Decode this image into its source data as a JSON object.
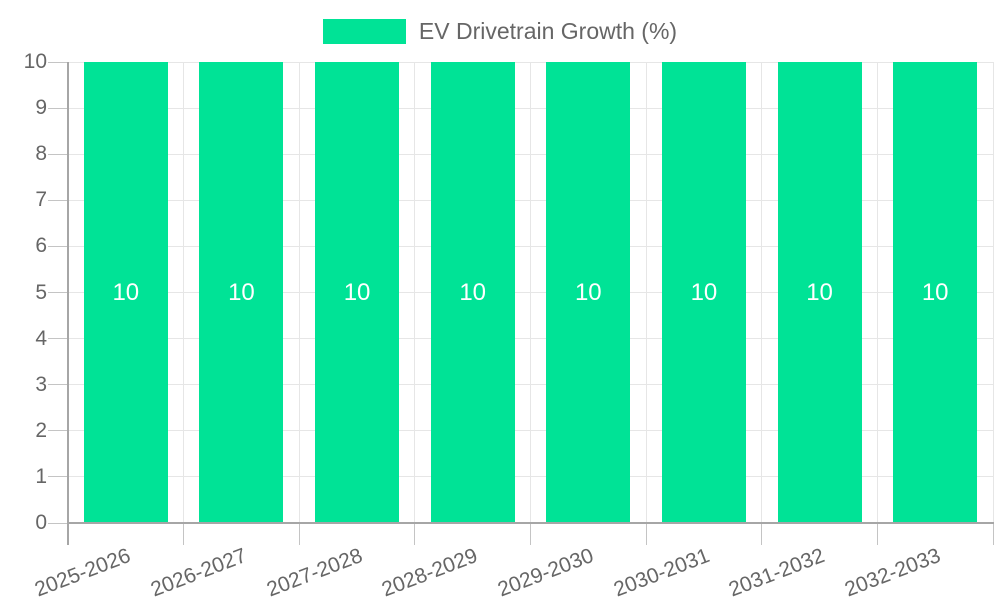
{
  "legend": {
    "label": "EV Drivetrain Growth (%)"
  },
  "chart_data": {
    "type": "bar",
    "title": "EV Drivetrain Growth (%)",
    "categories": [
      "2025-2026",
      "2026-2027",
      "2027-2028",
      "2028-2029",
      "2029-2030",
      "2030-2031",
      "2031-2032",
      "2032-2033"
    ],
    "series": [
      {
        "name": "EV Drivetrain Growth (%)",
        "values": [
          10,
          10,
          10,
          10,
          10,
          10,
          10,
          10
        ]
      }
    ],
    "bar_value_labels": [
      "10",
      "10",
      "10",
      "10",
      "10",
      "10",
      "10",
      "10"
    ],
    "xlabel": "",
    "ylabel": "",
    "ylim": [
      0,
      10
    ],
    "yticks": [
      0,
      1,
      2,
      3,
      4,
      5,
      6,
      7,
      8,
      9,
      10
    ],
    "grid": true,
    "legend_position": "top",
    "x_label_rotation_deg": -21,
    "colors": {
      "bar": "#00E396",
      "value_label": "#ffffff",
      "axis_text": "#666666",
      "legend_text": "#666666",
      "gridline": "#e6e6e6",
      "tick": "#c4c4c4",
      "axis_line": "#a6a6a6",
      "background": "#ffffff"
    }
  }
}
